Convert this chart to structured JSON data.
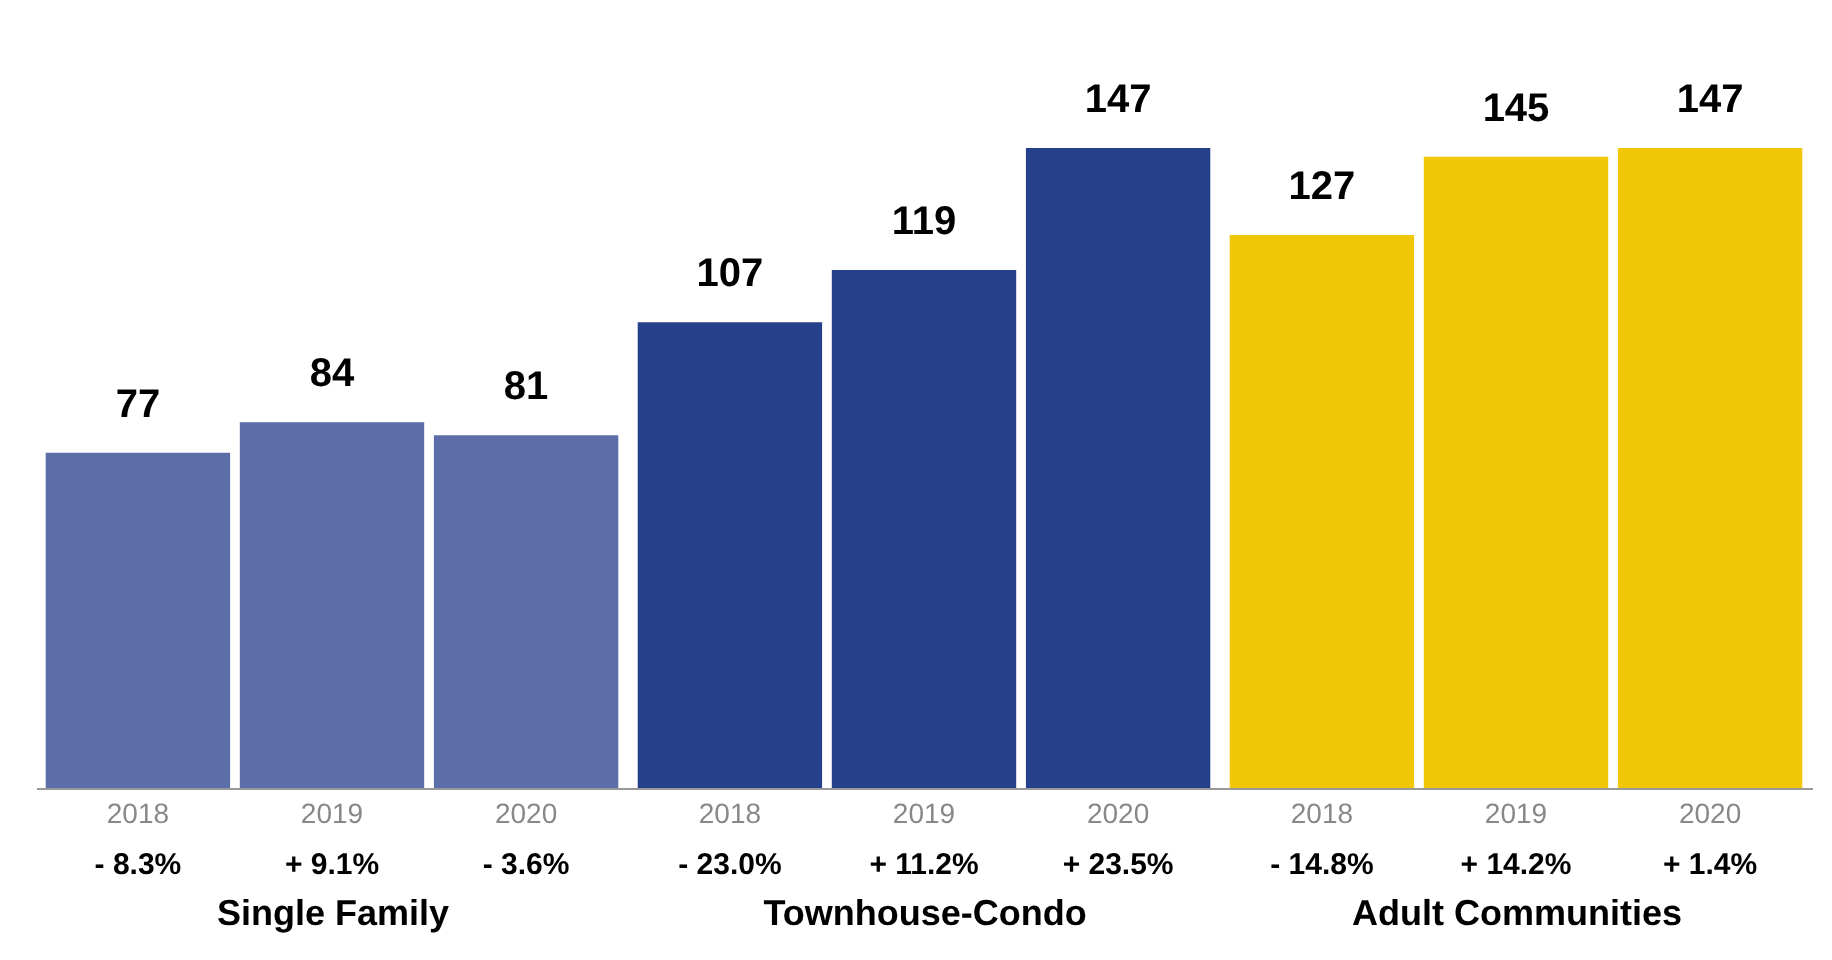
{
  "chart_data": [
    {
      "type": "bar",
      "xlabel": "Single Family",
      "categories": [
        "2018",
        "2019",
        "2020"
      ],
      "values": [
        77,
        84,
        81
      ],
      "color": "#5b6ea8",
      "data_labels": true,
      "annotations": [
        "- 8.3%",
        "+ 9.1%",
        "- 3.6%"
      ]
    },
    {
      "type": "bar",
      "xlabel": "Townhouse-Condo",
      "categories": [
        "2018",
        "2019",
        "2020"
      ],
      "values": [
        107,
        119,
        147
      ],
      "color": "#27408b",
      "data_labels": true,
      "annotations": [
        "- 23.0%",
        "+ 11.2%",
        "+ 23.5%"
      ]
    },
    {
      "type": "bar",
      "xlabel": "Adult Communities",
      "categories": [
        "2018",
        "2019",
        "2020"
      ],
      "values": [
        127,
        145,
        147
      ],
      "color": "#f0c808",
      "data_labels": true,
      "annotations": [
        "- 14.8%",
        "+ 14.2%",
        "+ 1.4%"
      ]
    }
  ]
}
